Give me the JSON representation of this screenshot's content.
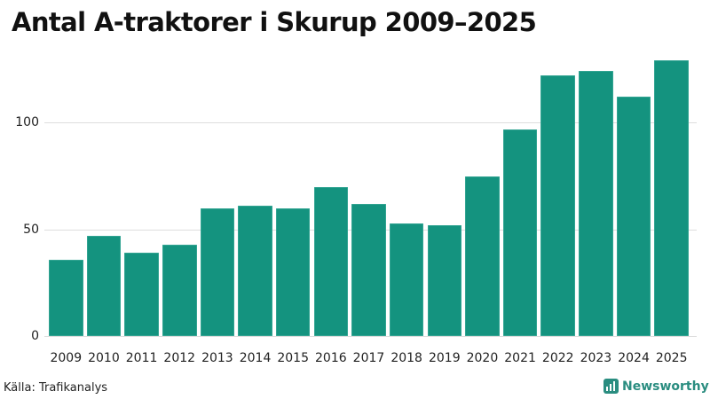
{
  "title": "Antal A-traktorer i Skurup 2009–2025",
  "source": "Källa: Trafikanalys",
  "brand": "Newsworthy",
  "colors": {
    "bar": "#14937f",
    "brand": "#2a8d80",
    "grid": "#dedede"
  },
  "y_ticks": [
    "0",
    "50",
    "100"
  ],
  "chart_data": {
    "type": "bar",
    "title": "Antal A-traktorer i Skurup 2009–2025",
    "xlabel": "",
    "ylabel": "",
    "categories": [
      "2009",
      "2010",
      "2011",
      "2012",
      "2013",
      "2014",
      "2015",
      "2016",
      "2017",
      "2018",
      "2019",
      "2020",
      "2021",
      "2022",
      "2023",
      "2024",
      "2025"
    ],
    "values": [
      36,
      47,
      39,
      43,
      60,
      61,
      60,
      70,
      62,
      53,
      52,
      75,
      97,
      122,
      124,
      112,
      129
    ],
    "ylim": [
      0,
      130
    ],
    "y_ticks": [
      0,
      50,
      100
    ],
    "grid": true,
    "legend": null,
    "source": "Källa: Trafikanalys"
  }
}
